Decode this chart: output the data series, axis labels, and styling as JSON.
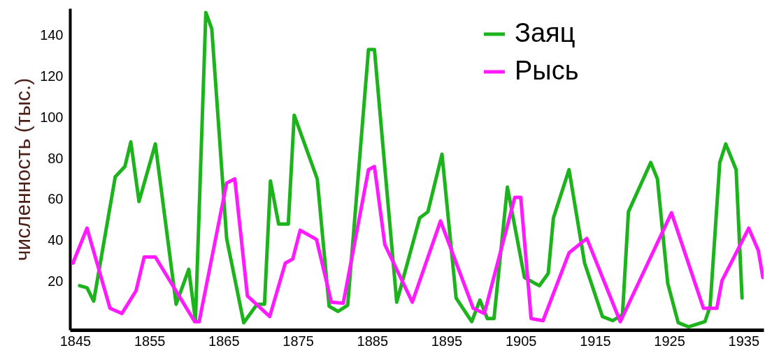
{
  "chart_data": {
    "type": "line",
    "ylabel": "численность (тыс.)",
    "xlim": [
      1844.3,
      1937.7
    ],
    "xticks": [
      1845,
      1855,
      1865,
      1875,
      1885,
      1895,
      1905,
      1915,
      1925,
      1935
    ],
    "ylim": [
      -3.5,
      153
    ],
    "yticks": [
      20,
      40,
      60,
      80,
      100,
      120,
      140
    ],
    "grid": false,
    "legend": "top right",
    "marker": "none",
    "line_style": "solid",
    "series": [
      {
        "name": "Заяц",
        "color": "#1db31d",
        "x": [
          1845.6,
          1846.6,
          1847.5,
          1850.4,
          1851.7,
          1852.5,
          1853.6,
          1855.8,
          1858.6,
          1860.3,
          1861.2,
          1862.6,
          1863.4,
          1865.4,
          1867.7,
          1869.5,
          1870.5,
          1871.3,
          1872.4,
          1873.7,
          1874.5,
          1877.6,
          1879.2,
          1880.4,
          1881.7,
          1884.5,
          1885.3,
          1888.3,
          1891.4,
          1892.5,
          1894.4,
          1896.3,
          1898.4,
          1899.5,
          1900.5,
          1901.4,
          1903.2,
          1905.5,
          1907.5,
          1908.7,
          1909.4,
          1911.5,
          1913.6,
          1916,
          1917.4,
          1918.7,
          1919.5,
          1922.5,
          1923.4,
          1924.8,
          1926.2,
          1927.6,
          1929.8,
          1930.5,
          1931.8,
          1932.6,
          1934,
          1934.8
        ],
        "values": [
          18,
          17,
          10.5,
          71,
          76,
          88,
          59,
          87,
          9,
          26,
          1,
          151,
          143,
          41,
          0,
          9,
          9,
          69,
          48,
          48,
          101,
          70,
          8,
          5.5,
          8.5,
          133,
          133,
          10,
          51,
          54,
          82,
          12,
          0.5,
          11,
          2,
          2,
          66,
          22,
          18,
          24,
          51,
          74.5,
          29,
          3,
          1,
          4,
          54,
          78,
          70,
          19,
          0,
          -2,
          0.5,
          8,
          78,
          87,
          74.5,
          12
        ]
      },
      {
        "name": "Рысь",
        "color": "#ff1aff",
        "x": [
          1844.7,
          1846.6,
          1849.7,
          1851.3,
          1853.2,
          1854.3,
          1855.8,
          1861.1,
          1861.7,
          1865.4,
          1866.5,
          1868.2,
          1871.2,
          1873.3,
          1874.3,
          1875.3,
          1877.5,
          1879.5,
          1881.1,
          1884.5,
          1885.3,
          1886.7,
          1890.4,
          1894.2,
          1898.6,
          1900.1,
          1904.2,
          1905,
          1906.4,
          1908,
          1911.5,
          1913.9,
          1918.4,
          1925.3,
          1929.6,
          1931.4,
          1932.1,
          1935.7,
          1937,
          1937.6
        ],
        "values": [
          29,
          46,
          7,
          4.5,
          15.5,
          32,
          32,
          0.5,
          0.5,
          68,
          70,
          13,
          3,
          29,
          31,
          45,
          40.5,
          10,
          9.5,
          74.5,
          76,
          38,
          10,
          49.5,
          7,
          4.5,
          61,
          61,
          2,
          1,
          34,
          41,
          0.5,
          53.5,
          7,
          7,
          20.5,
          46,
          35,
          22
        ]
      }
    ]
  }
}
